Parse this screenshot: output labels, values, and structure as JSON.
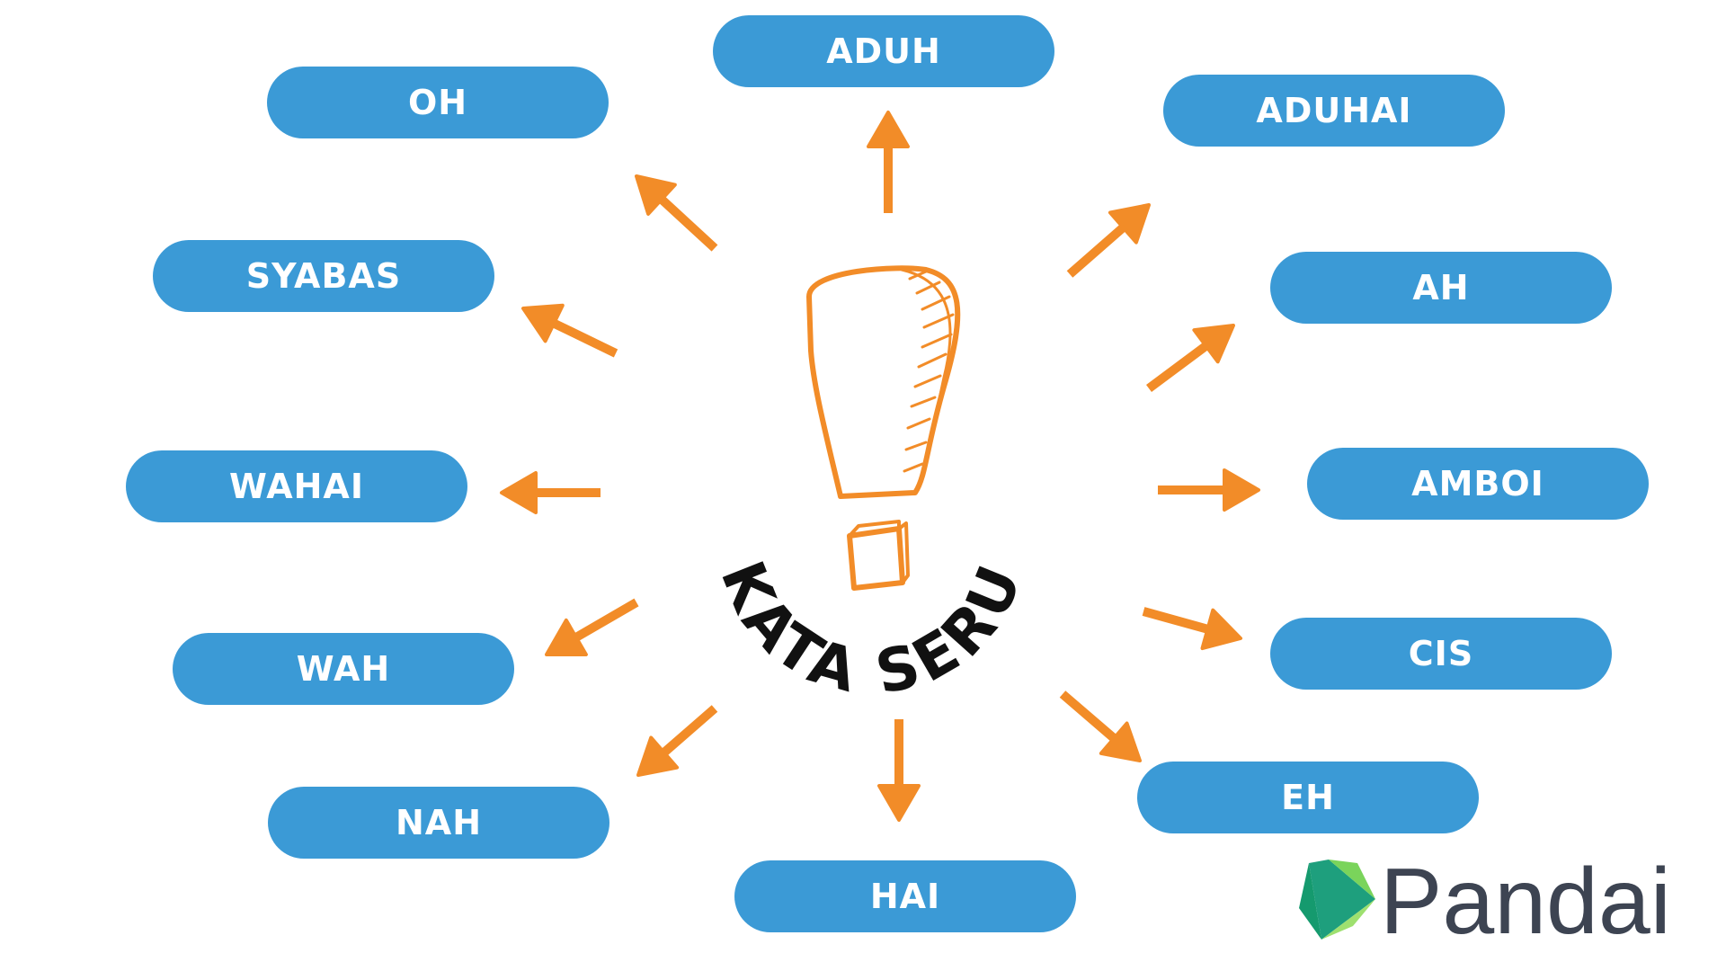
{
  "center": {
    "label": "KATA SERU",
    "symbol": "exclamation-mark"
  },
  "items": [
    {
      "label": "ADUH"
    },
    {
      "label": "ADUHAI"
    },
    {
      "label": "AH"
    },
    {
      "label": "AMBOI"
    },
    {
      "label": "CIS"
    },
    {
      "label": "EH"
    },
    {
      "label": "HAI"
    },
    {
      "label": "NAH"
    },
    {
      "label": "WAH"
    },
    {
      "label": "WAHAI"
    },
    {
      "label": "SYABAS"
    },
    {
      "label": "OH"
    }
  ],
  "brand": {
    "name": "Pandai",
    "logo_icon": "pandai-logo-icon"
  },
  "colors": {
    "pill": "#3b9ad6",
    "arrow": "#f28c28",
    "center_symbol": "#f28c28",
    "center_text": "#111111",
    "brand_text": "#3d4452",
    "logo_green_dark": "#1e9f7d",
    "logo_green_light": "#7ad45b"
  }
}
